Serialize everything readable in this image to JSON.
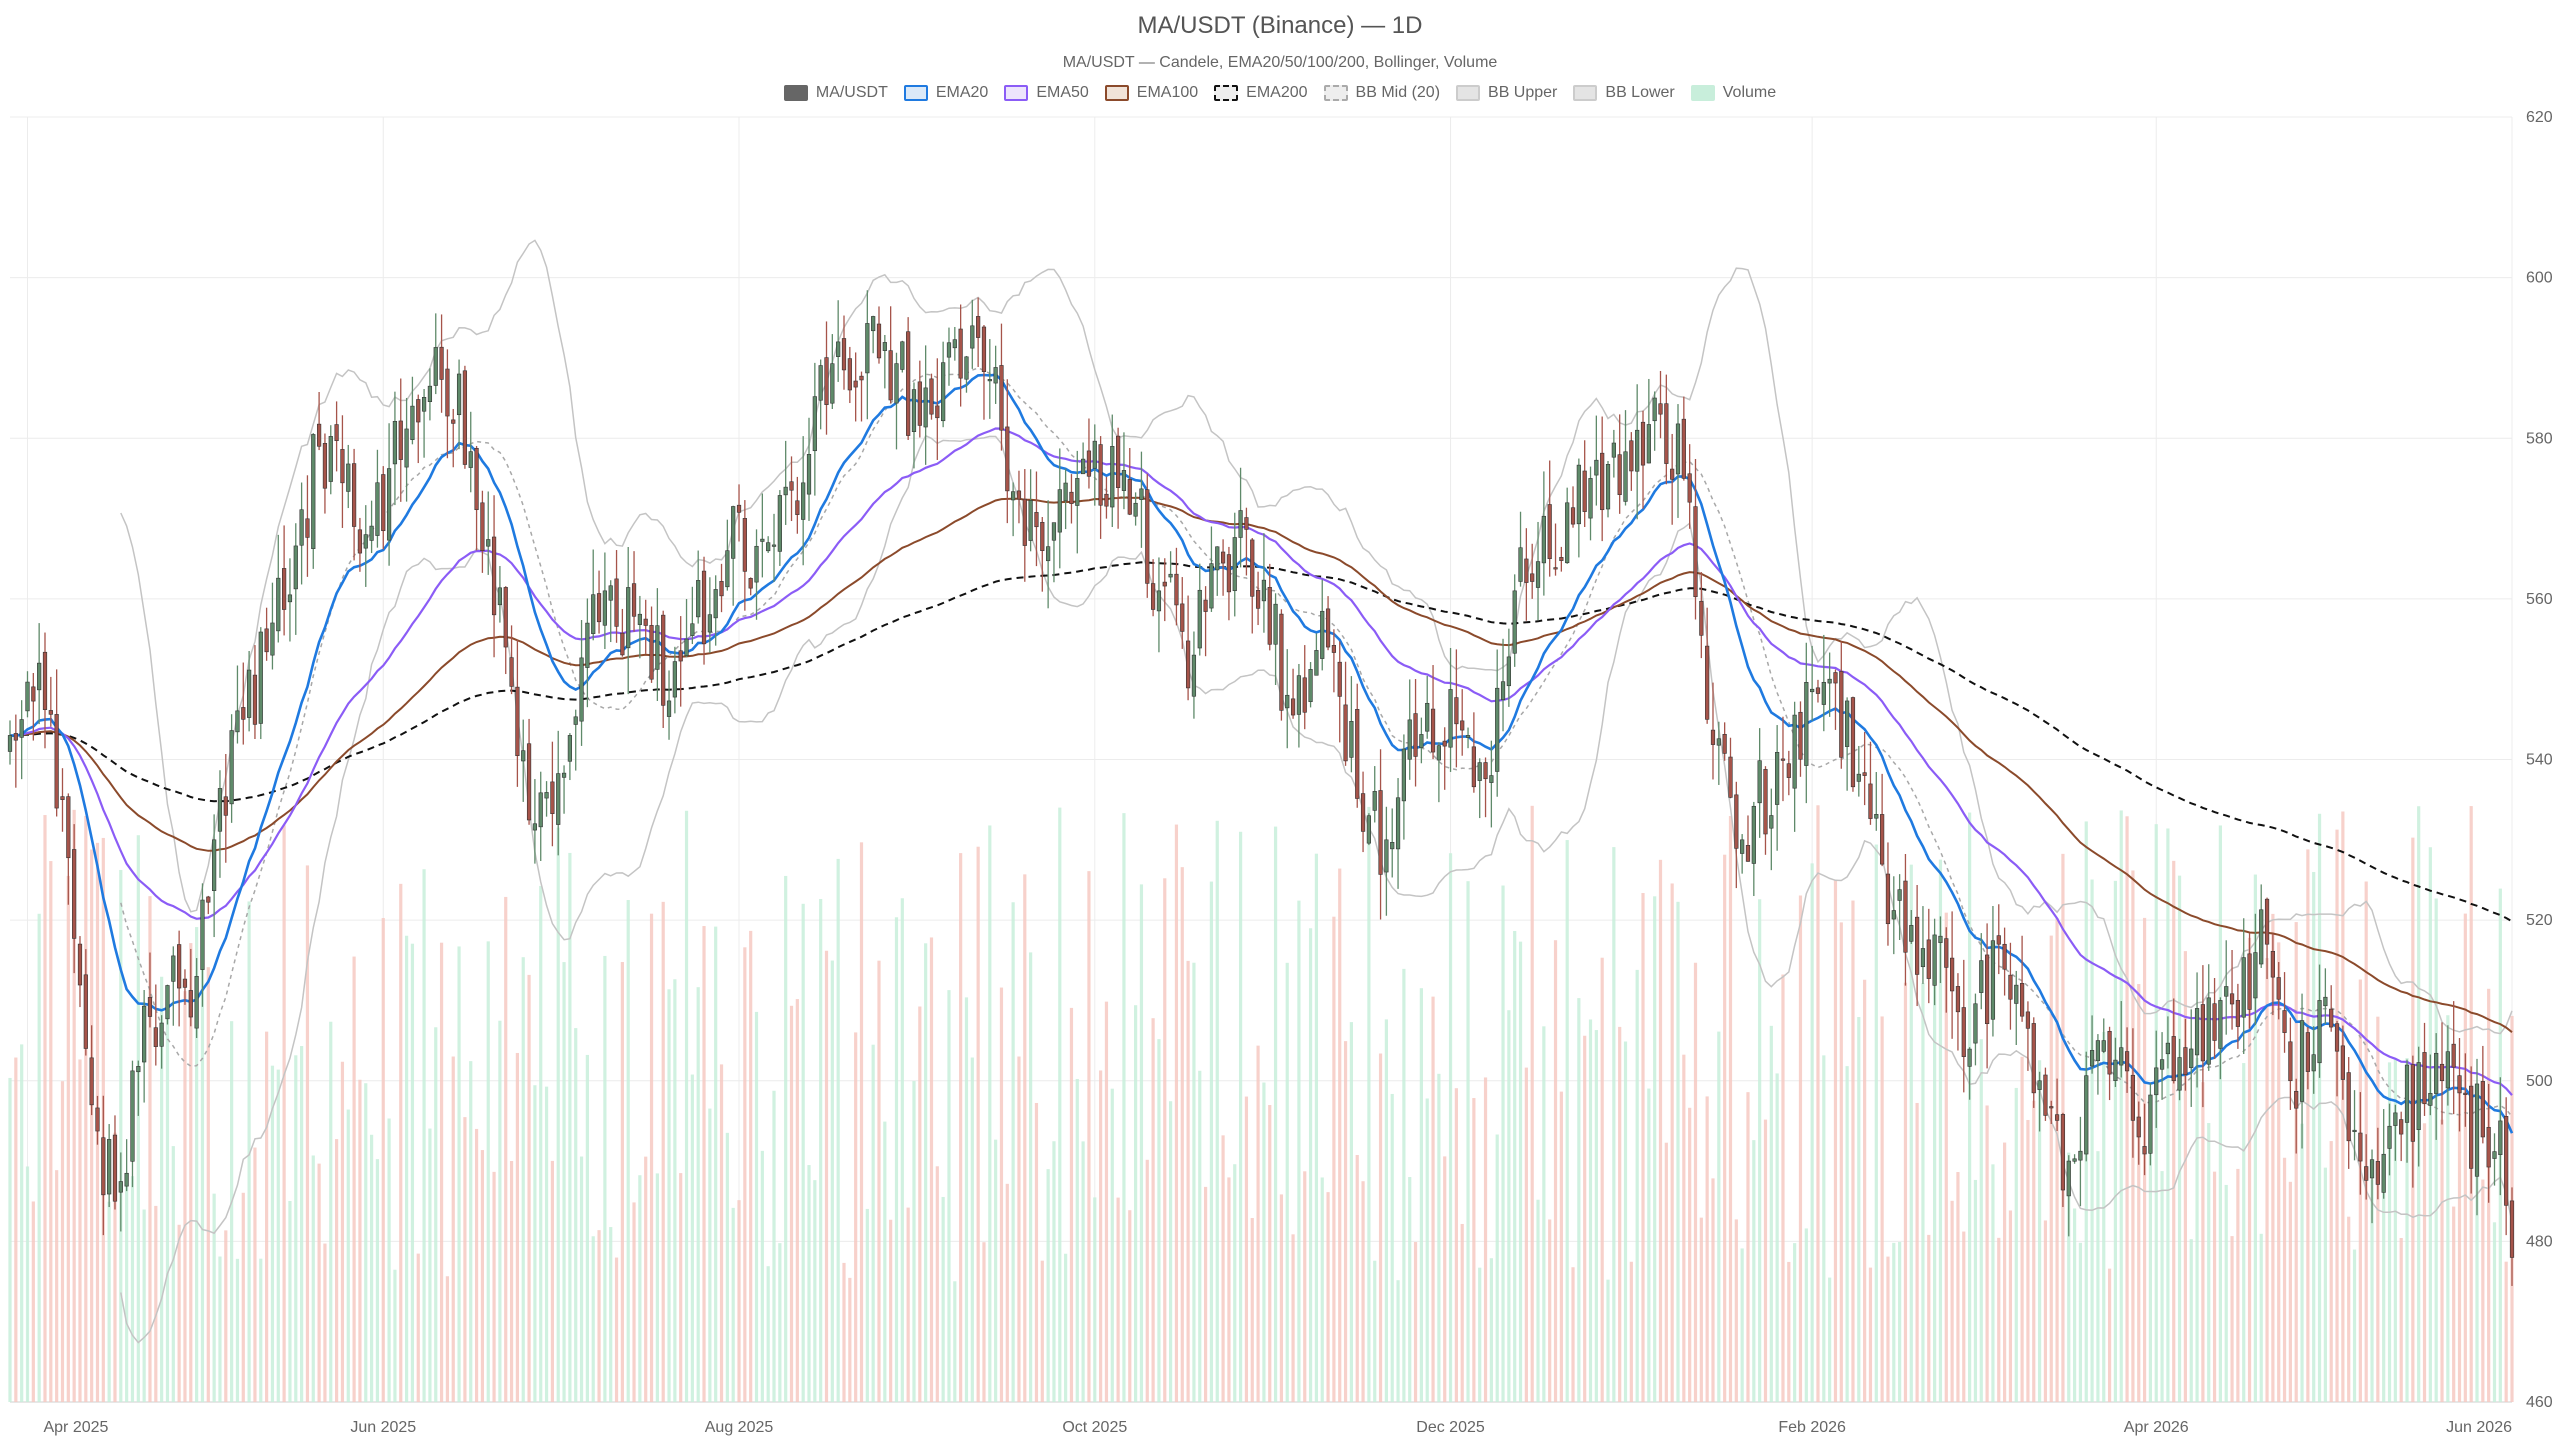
{
  "chart_data": {
    "type": "candlestick",
    "title": "MA/USDT (Binance) — 1D",
    "subtitle": "MA/USDT — Candele, EMA20/50/100/200, Bollinger, Volume",
    "legend": [
      {
        "label": "MA/USDT",
        "color": "#666666",
        "fill": "#666666",
        "style": "solid"
      },
      {
        "label": "EMA20",
        "color": "#1f7ae0",
        "fill": "#dbe9f8",
        "style": "solid"
      },
      {
        "label": "EMA50",
        "color": "#8b5cf6",
        "fill": "#ede5fc",
        "style": "solid"
      },
      {
        "label": "EMA100",
        "color": "#8b4a2b",
        "fill": "#f1e3d8",
        "style": "solid"
      },
      {
        "label": "EMA200",
        "color": "#111111",
        "fill": "#eeeeee",
        "style": "dashed"
      },
      {
        "label": "BB Mid (20)",
        "color": "#aaaaaa",
        "fill": "#eeeeee",
        "style": "dashed"
      },
      {
        "label": "BB Upper",
        "color": "#cccccc",
        "fill": "#e4e4e4",
        "style": "solid"
      },
      {
        "label": "BB Lower",
        "color": "#cccccc",
        "fill": "#e4e4e4",
        "style": "solid"
      },
      {
        "label": "Volume",
        "color": "#c8eedb",
        "fill": "#c8eedb",
        "style": "solid"
      }
    ],
    "x_ticks": [
      "Apr 2025",
      "Jun 2025",
      "Aug 2025",
      "Oct 2025",
      "Dec 2025",
      "Feb 2026",
      "Apr 2026",
      "Jun 2026"
    ],
    "x_tick_dates": [
      "2025-04-01",
      "2025-06-01",
      "2025-08-01",
      "2025-10-01",
      "2025-12-01",
      "2026-02-01",
      "2026-04-01",
      "2026-06-01"
    ],
    "x_range": [
      "2025-03-29",
      "2026-06-01"
    ],
    "y_ticks": [
      460,
      480,
      500,
      520,
      540,
      560,
      580,
      600,
      620
    ],
    "ylim": [
      460,
      620
    ],
    "y_axis_position": "right",
    "grid": true,
    "legend_position": "top-center",
    "colors": {
      "up": "#5f8a6a",
      "down": "#a6544a",
      "vol_up": "#c8eedb",
      "vol_down": "#f6c9c2"
    },
    "close_anchors": [
      [
        "2025-03-29",
        543
      ],
      [
        "2025-04-03",
        552
      ],
      [
        "2025-04-07",
        535
      ],
      [
        "2025-04-12",
        497
      ],
      [
        "2025-04-16",
        485
      ],
      [
        "2025-04-22",
        508
      ],
      [
        "2025-04-30",
        513
      ],
      [
        "2025-05-03",
        530
      ],
      [
        "2025-05-08",
        545
      ],
      [
        "2025-05-13",
        557
      ],
      [
        "2025-05-21",
        579
      ],
      [
        "2025-05-29",
        568
      ],
      [
        "2025-06-06",
        584
      ],
      [
        "2025-06-14",
        588
      ],
      [
        "2025-06-18",
        566
      ],
      [
        "2025-06-22",
        554
      ],
      [
        "2025-06-27",
        532
      ],
      [
        "2025-07-03",
        543
      ],
      [
        "2025-07-09",
        561
      ],
      [
        "2025-07-17",
        550
      ],
      [
        "2025-07-23",
        555
      ],
      [
        "2025-07-30",
        566
      ],
      [
        "2025-08-06",
        567
      ],
      [
        "2025-08-13",
        578
      ],
      [
        "2025-08-18",
        592
      ],
      [
        "2025-08-25",
        590
      ],
      [
        "2025-09-03",
        583
      ],
      [
        "2025-09-10",
        594
      ],
      [
        "2025-09-15",
        581
      ],
      [
        "2025-09-22",
        566
      ],
      [
        "2025-09-28",
        575
      ],
      [
        "2025-10-06",
        576
      ],
      [
        "2025-10-12",
        561
      ],
      [
        "2025-10-18",
        553
      ],
      [
        "2025-10-26",
        571
      ],
      [
        "2025-11-03",
        548
      ],
      [
        "2025-11-10",
        554
      ],
      [
        "2025-11-17",
        533
      ],
      [
        "2025-11-20",
        530
      ],
      [
        "2025-11-27",
        547
      ],
      [
        "2025-12-04",
        543
      ],
      [
        "2025-12-08",
        538
      ],
      [
        "2025-12-12",
        561
      ],
      [
        "2025-12-18",
        565
      ],
      [
        "2025-12-25",
        575
      ],
      [
        "2026-01-02",
        581
      ],
      [
        "2026-01-06",
        583
      ],
      [
        "2026-01-10",
        575
      ],
      [
        "2026-01-14",
        545
      ],
      [
        "2026-01-20",
        530
      ],
      [
        "2026-01-27",
        540
      ],
      [
        "2026-02-04",
        550
      ],
      [
        "2026-02-10",
        538
      ],
      [
        "2026-02-17",
        516
      ],
      [
        "2026-02-23",
        518
      ],
      [
        "2026-02-27",
        503
      ],
      [
        "2026-03-05",
        517
      ],
      [
        "2026-03-12",
        500
      ],
      [
        "2026-03-17",
        490
      ],
      [
        "2026-03-23",
        505
      ],
      [
        "2026-03-29",
        493
      ],
      [
        "2026-04-04",
        500
      ],
      [
        "2026-04-12",
        510
      ],
      [
        "2026-04-20",
        517
      ],
      [
        "2026-04-24",
        500
      ],
      [
        "2026-04-29",
        510
      ],
      [
        "2026-05-06",
        490
      ],
      [
        "2026-05-12",
        496
      ],
      [
        "2026-05-20",
        500
      ],
      [
        "2026-05-27",
        493
      ],
      [
        "2026-05-30",
        495
      ],
      [
        "2026-06-01",
        478
      ]
    ]
  }
}
